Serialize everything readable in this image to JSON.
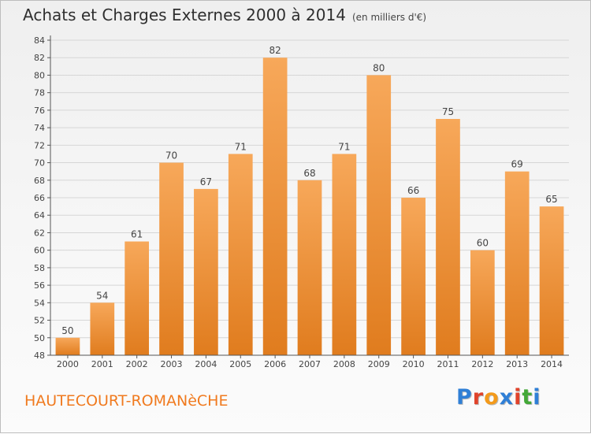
{
  "header": {
    "title": "Achats et Charges Externes 2000 à 2014",
    "subtitle": "(en milliers d'€)"
  },
  "commune": "HAUTECOURT-ROMANèCHE",
  "logo": {
    "text": "Proxiti",
    "letter_colors": [
      "#2f7fd6",
      "#e0432b",
      "#f39a1a",
      "#2f7fd6",
      "#e0432b",
      "#43a838",
      "#2f7fd6"
    ]
  },
  "colors": {
    "bar_light": "#f7a85a",
    "bar_dark": "#e07c1e",
    "grid": "#d6d6d6",
    "axis": "#555555",
    "label": "#444444"
  },
  "chart_data": {
    "type": "bar",
    "title": "Achats et Charges Externes 2000 à 2014",
    "subtitle": "(en milliers d'€)",
    "categories": [
      "2000",
      "2001",
      "2002",
      "2003",
      "2004",
      "2005",
      "2006",
      "2007",
      "2008",
      "2009",
      "2010",
      "2011",
      "2012",
      "2013",
      "2014"
    ],
    "values": [
      50,
      54,
      61,
      70,
      67,
      71,
      82,
      68,
      71,
      80,
      66,
      75,
      60,
      69,
      65
    ],
    "ylim": [
      48,
      84
    ],
    "yticks": [
      48,
      50,
      52,
      54,
      56,
      58,
      60,
      62,
      64,
      66,
      68,
      70,
      72,
      74,
      76,
      78,
      80,
      82,
      84
    ],
    "grid": true,
    "data_labels": true
  }
}
